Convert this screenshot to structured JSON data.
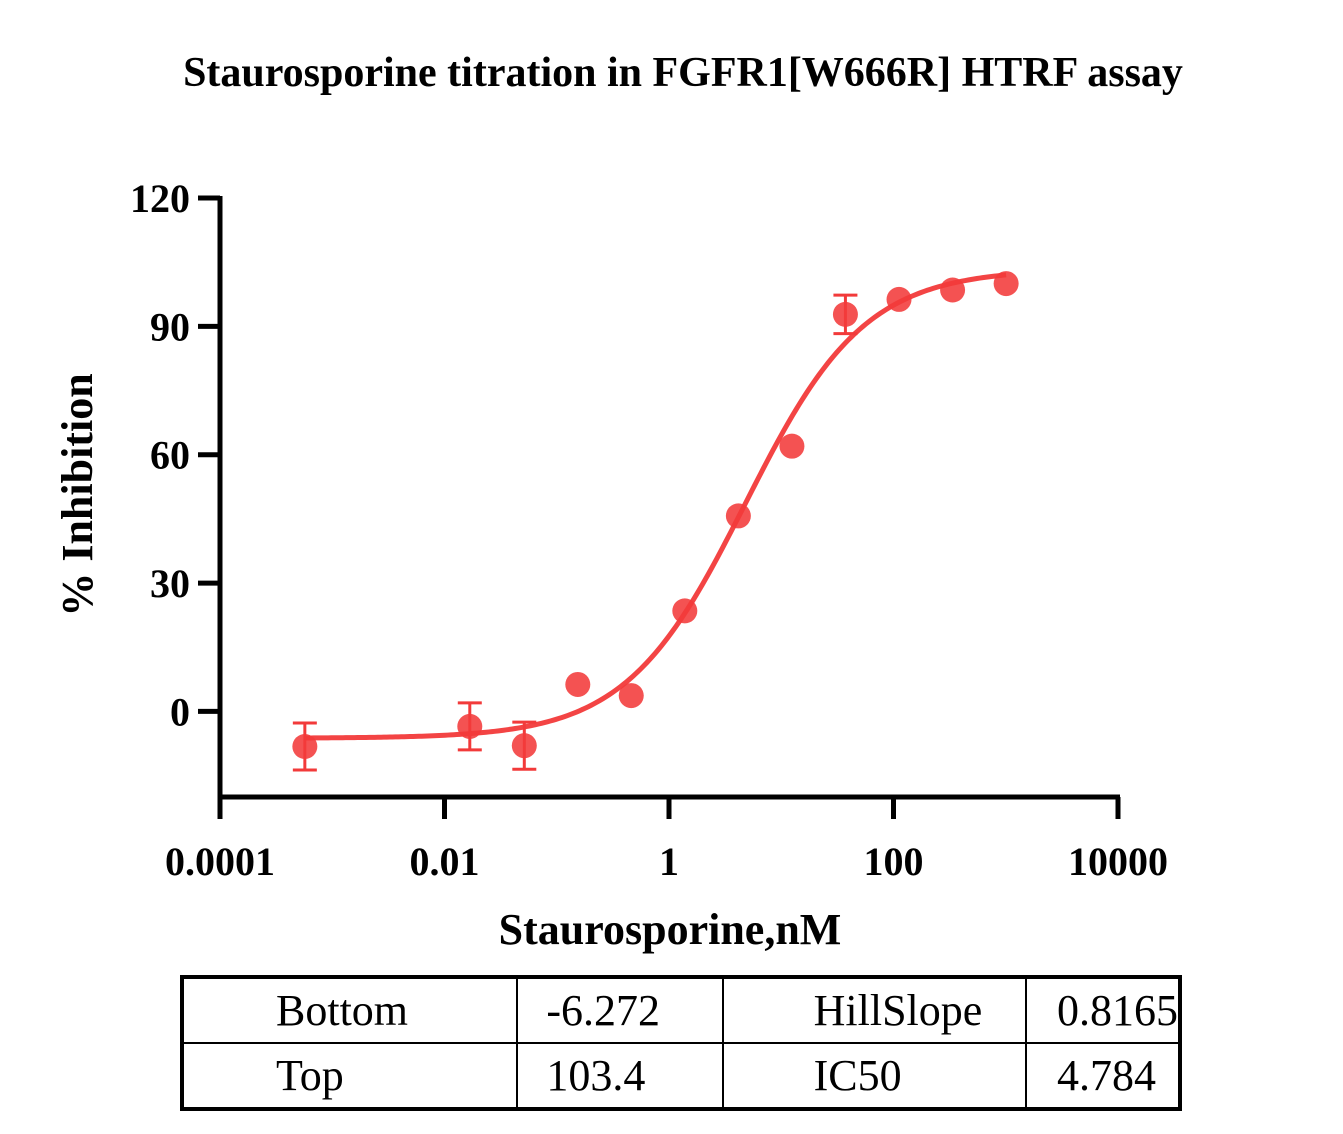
{
  "chart_data": {
    "type": "scatter",
    "title": "Staurosporine titration in FGFR1[W666R] HTRF assay",
    "xlabel": "Staurosporine,nM",
    "ylabel": "% Inhibition",
    "x_scale": "log",
    "xlim": [
      0.0001,
      10000
    ],
    "ylim": [
      -20,
      120
    ],
    "x_ticks": [
      "0.0001",
      "0.01",
      "1",
      "100",
      "10000"
    ],
    "y_ticks": [
      "0",
      "30",
      "60",
      "90",
      "120"
    ],
    "color": "#f23a3a",
    "series": [
      {
        "points": [
          {
            "x": 0.00057,
            "y": -8.2,
            "err": 5.5
          },
          {
            "x": 0.0168,
            "y": -3.5,
            "err": 5.5
          },
          {
            "x": 0.0514,
            "y": -8.0,
            "err": 5.5
          },
          {
            "x": 0.154,
            "y": 6.3,
            "err": 0
          },
          {
            "x": 0.461,
            "y": 3.7,
            "err": 0
          },
          {
            "x": 1.383,
            "y": 23.5,
            "err": 0
          },
          {
            "x": 4.15,
            "y": 45.7,
            "err": 0
          },
          {
            "x": 12.45,
            "y": 62.0,
            "err": 0
          },
          {
            "x": 37.3,
            "y": 92.8,
            "err": 4.5
          },
          {
            "x": 112,
            "y": 96.3,
            "err": 0
          },
          {
            "x": 336,
            "y": 98.5,
            "err": 0
          },
          {
            "x": 1008,
            "y": 100.0,
            "err": 0
          }
        ]
      }
    ],
    "fit": {
      "model": "four-parameter logistic",
      "bottom": -6.272,
      "top": 103.4,
      "ic50": 4.784,
      "hillslope": 0.8165,
      "x_range": [
        0.00057,
        1008
      ]
    }
  },
  "params_table": [
    {
      "label1": "Bottom",
      "value1": "-6.272",
      "label2": "HillSlope",
      "value2": "0.8165"
    },
    {
      "label1": "Top",
      "value1": "103.4",
      "label2": "IC50",
      "value2": "4.784"
    }
  ]
}
